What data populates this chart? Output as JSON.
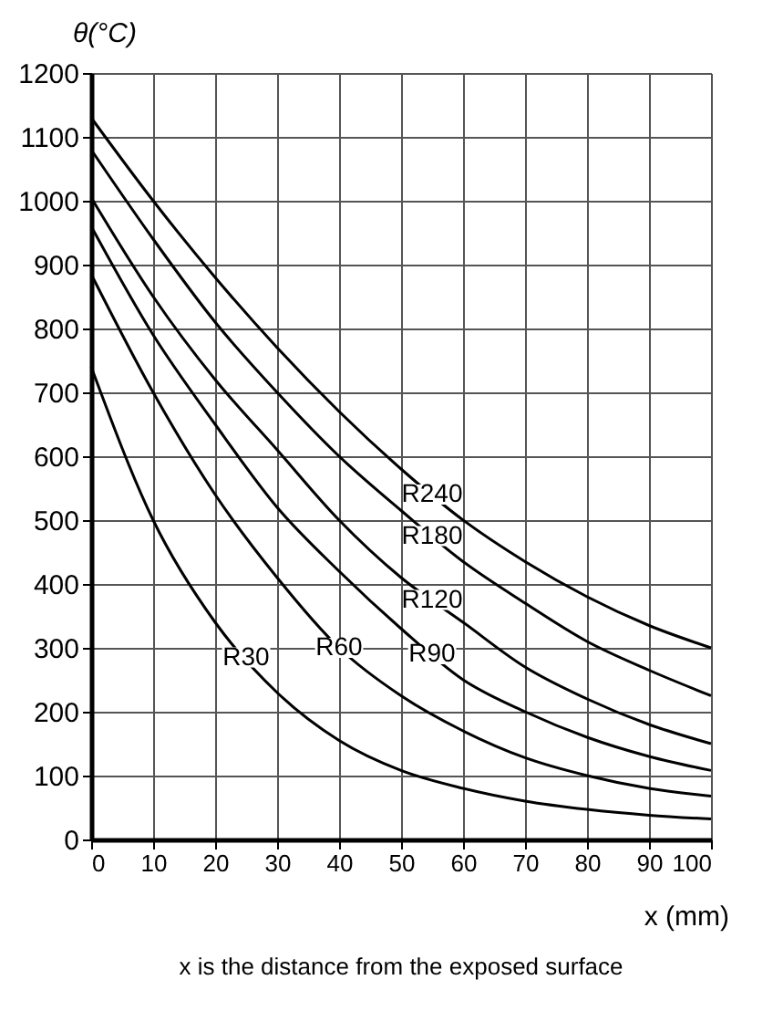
{
  "chart_data": {
    "type": "line",
    "xlabel": "x (mm)",
    "ylabel": "θ(°C)",
    "x": [
      0,
      10,
      20,
      30,
      40,
      50,
      60,
      70,
      80,
      90,
      100
    ],
    "series": [
      {
        "color": "#000000",
        "values": [
          1130,
          1000,
          880,
          770,
          670,
          580,
          500,
          435,
          380,
          335,
          300
        ]
      },
      {
        "color": "#000000",
        "values": [
          1080,
          940,
          810,
          700,
          600,
          515,
          435,
          370,
          310,
          265,
          225
        ]
      },
      {
        "color": "#000000",
        "values": [
          1005,
          850,
          720,
          610,
          500,
          410,
          340,
          270,
          220,
          180,
          150
        ]
      },
      {
        "color": "#000000",
        "values": [
          960,
          790,
          650,
          520,
          420,
          330,
          250,
          200,
          160,
          130,
          108
        ]
      },
      {
        "color": "#000000",
        "values": [
          885,
          700,
          540,
          410,
          300,
          225,
          170,
          128,
          100,
          80,
          68
        ]
      },
      {
        "color": "#000000",
        "values": [
          740,
          500,
          340,
          230,
          155,
          108,
          80,
          60,
          47,
          38,
          32
        ]
      }
    ],
    "annotations": [
      {
        "text": "R240",
        "x": 55,
        "y": 540
      },
      {
        "text": "R180",
        "x": 55,
        "y": 475
      },
      {
        "text": "R120",
        "x": 55,
        "y": 375
      },
      {
        "text": "R90",
        "x": 55,
        "y": 290
      },
      {
        "text": "R60",
        "x": 40,
        "y": 300
      },
      {
        "text": "R30",
        "x": 25,
        "y": 285
      },
      "x is the distance from the exposed surface"
    ],
    "xlim": [
      0,
      100
    ],
    "xticks": [
      0,
      10,
      20,
      30,
      40,
      50,
      60,
      70,
      80,
      90,
      100
    ],
    "ylim": [
      0,
      1200
    ],
    "yticks": [
      0,
      100,
      200,
      300,
      400,
      500,
      600,
      700,
      800,
      900,
      1000,
      1100,
      1200
    ],
    "grid": true,
    "legend": false,
    "marker": "none",
    "line_style": "solid"
  }
}
